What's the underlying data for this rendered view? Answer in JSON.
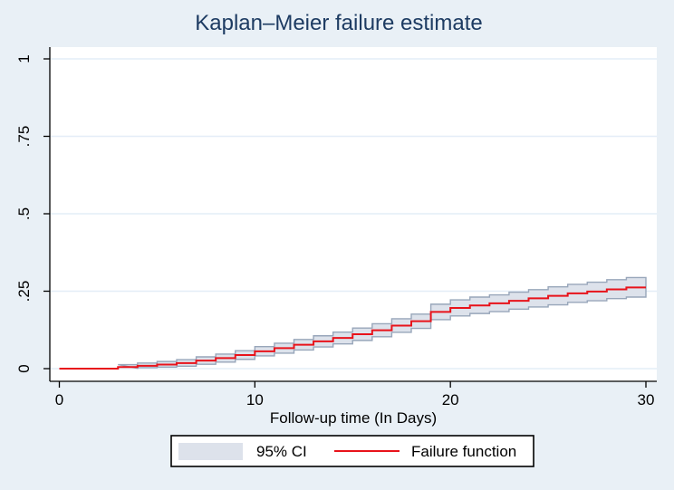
{
  "chart_data": {
    "type": "line",
    "subtype": "kaplan-meier-failure-step",
    "title": "Kaplan–Meier failure estimate",
    "xlabel": "Follow-up time (In Days)",
    "ylabel": "",
    "xlim": [
      0,
      30
    ],
    "ylim": [
      0,
      1
    ],
    "xticks": [
      0,
      10,
      20,
      30
    ],
    "xtick_labels": [
      "0",
      "10",
      "20",
      "30"
    ],
    "yticks": [
      0,
      0.25,
      0.5,
      0.75,
      1
    ],
    "ytick_labels": [
      "0",
      ".25",
      ".5",
      ".75",
      "1"
    ],
    "grid": true,
    "legend_position": "bottom-center",
    "legend": [
      {
        "label": "95% CI",
        "swatch": "area"
      },
      {
        "label": "Failure function",
        "swatch": "line"
      }
    ],
    "colors": {
      "background": "#e9f0f6",
      "plot_background": "#ffffff",
      "gridline": "#e4edf7",
      "title_text": "#1d3b62",
      "axis_text": "#000000",
      "axis_line": "#000000",
      "failure_line": "#e8131b",
      "ci_fill": "#dde2eb",
      "ci_edge": "#98a6ba",
      "legend_background": "#ffffff",
      "legend_border": "#000000"
    },
    "series": [
      {
        "name": "Failure function",
        "type": "step",
        "x": [
          0,
          3,
          4,
          5,
          6,
          7,
          8,
          9,
          10,
          11,
          12,
          13,
          14,
          15,
          16,
          17,
          18,
          19,
          20,
          21,
          22,
          23,
          24,
          25,
          26,
          27,
          28,
          29,
          30
        ],
        "y": [
          0,
          0.005,
          0.009,
          0.013,
          0.018,
          0.026,
          0.034,
          0.044,
          0.056,
          0.066,
          0.077,
          0.088,
          0.099,
          0.111,
          0.124,
          0.139,
          0.153,
          0.183,
          0.196,
          0.204,
          0.211,
          0.219,
          0.227,
          0.235,
          0.243,
          0.249,
          0.256,
          0.262,
          0.262
        ]
      },
      {
        "name": "95% CI",
        "type": "step-band",
        "x": [
          3,
          4,
          5,
          6,
          7,
          8,
          9,
          10,
          11,
          12,
          13,
          14,
          15,
          16,
          17,
          18,
          19,
          20,
          21,
          22,
          23,
          24,
          25,
          26,
          27,
          28,
          29,
          30
        ],
        "high": [
          0.013,
          0.018,
          0.023,
          0.029,
          0.038,
          0.047,
          0.058,
          0.071,
          0.082,
          0.094,
          0.106,
          0.118,
          0.131,
          0.145,
          0.161,
          0.176,
          0.208,
          0.222,
          0.231,
          0.238,
          0.247,
          0.255,
          0.264,
          0.272,
          0.279,
          0.287,
          0.294,
          0.294
        ],
        "low": [
          0.001,
          0.003,
          0.005,
          0.008,
          0.014,
          0.021,
          0.03,
          0.041,
          0.05,
          0.06,
          0.07,
          0.08,
          0.091,
          0.103,
          0.117,
          0.13,
          0.158,
          0.17,
          0.178,
          0.184,
          0.192,
          0.199,
          0.206,
          0.214,
          0.219,
          0.226,
          0.231,
          0.231
        ]
      }
    ]
  }
}
